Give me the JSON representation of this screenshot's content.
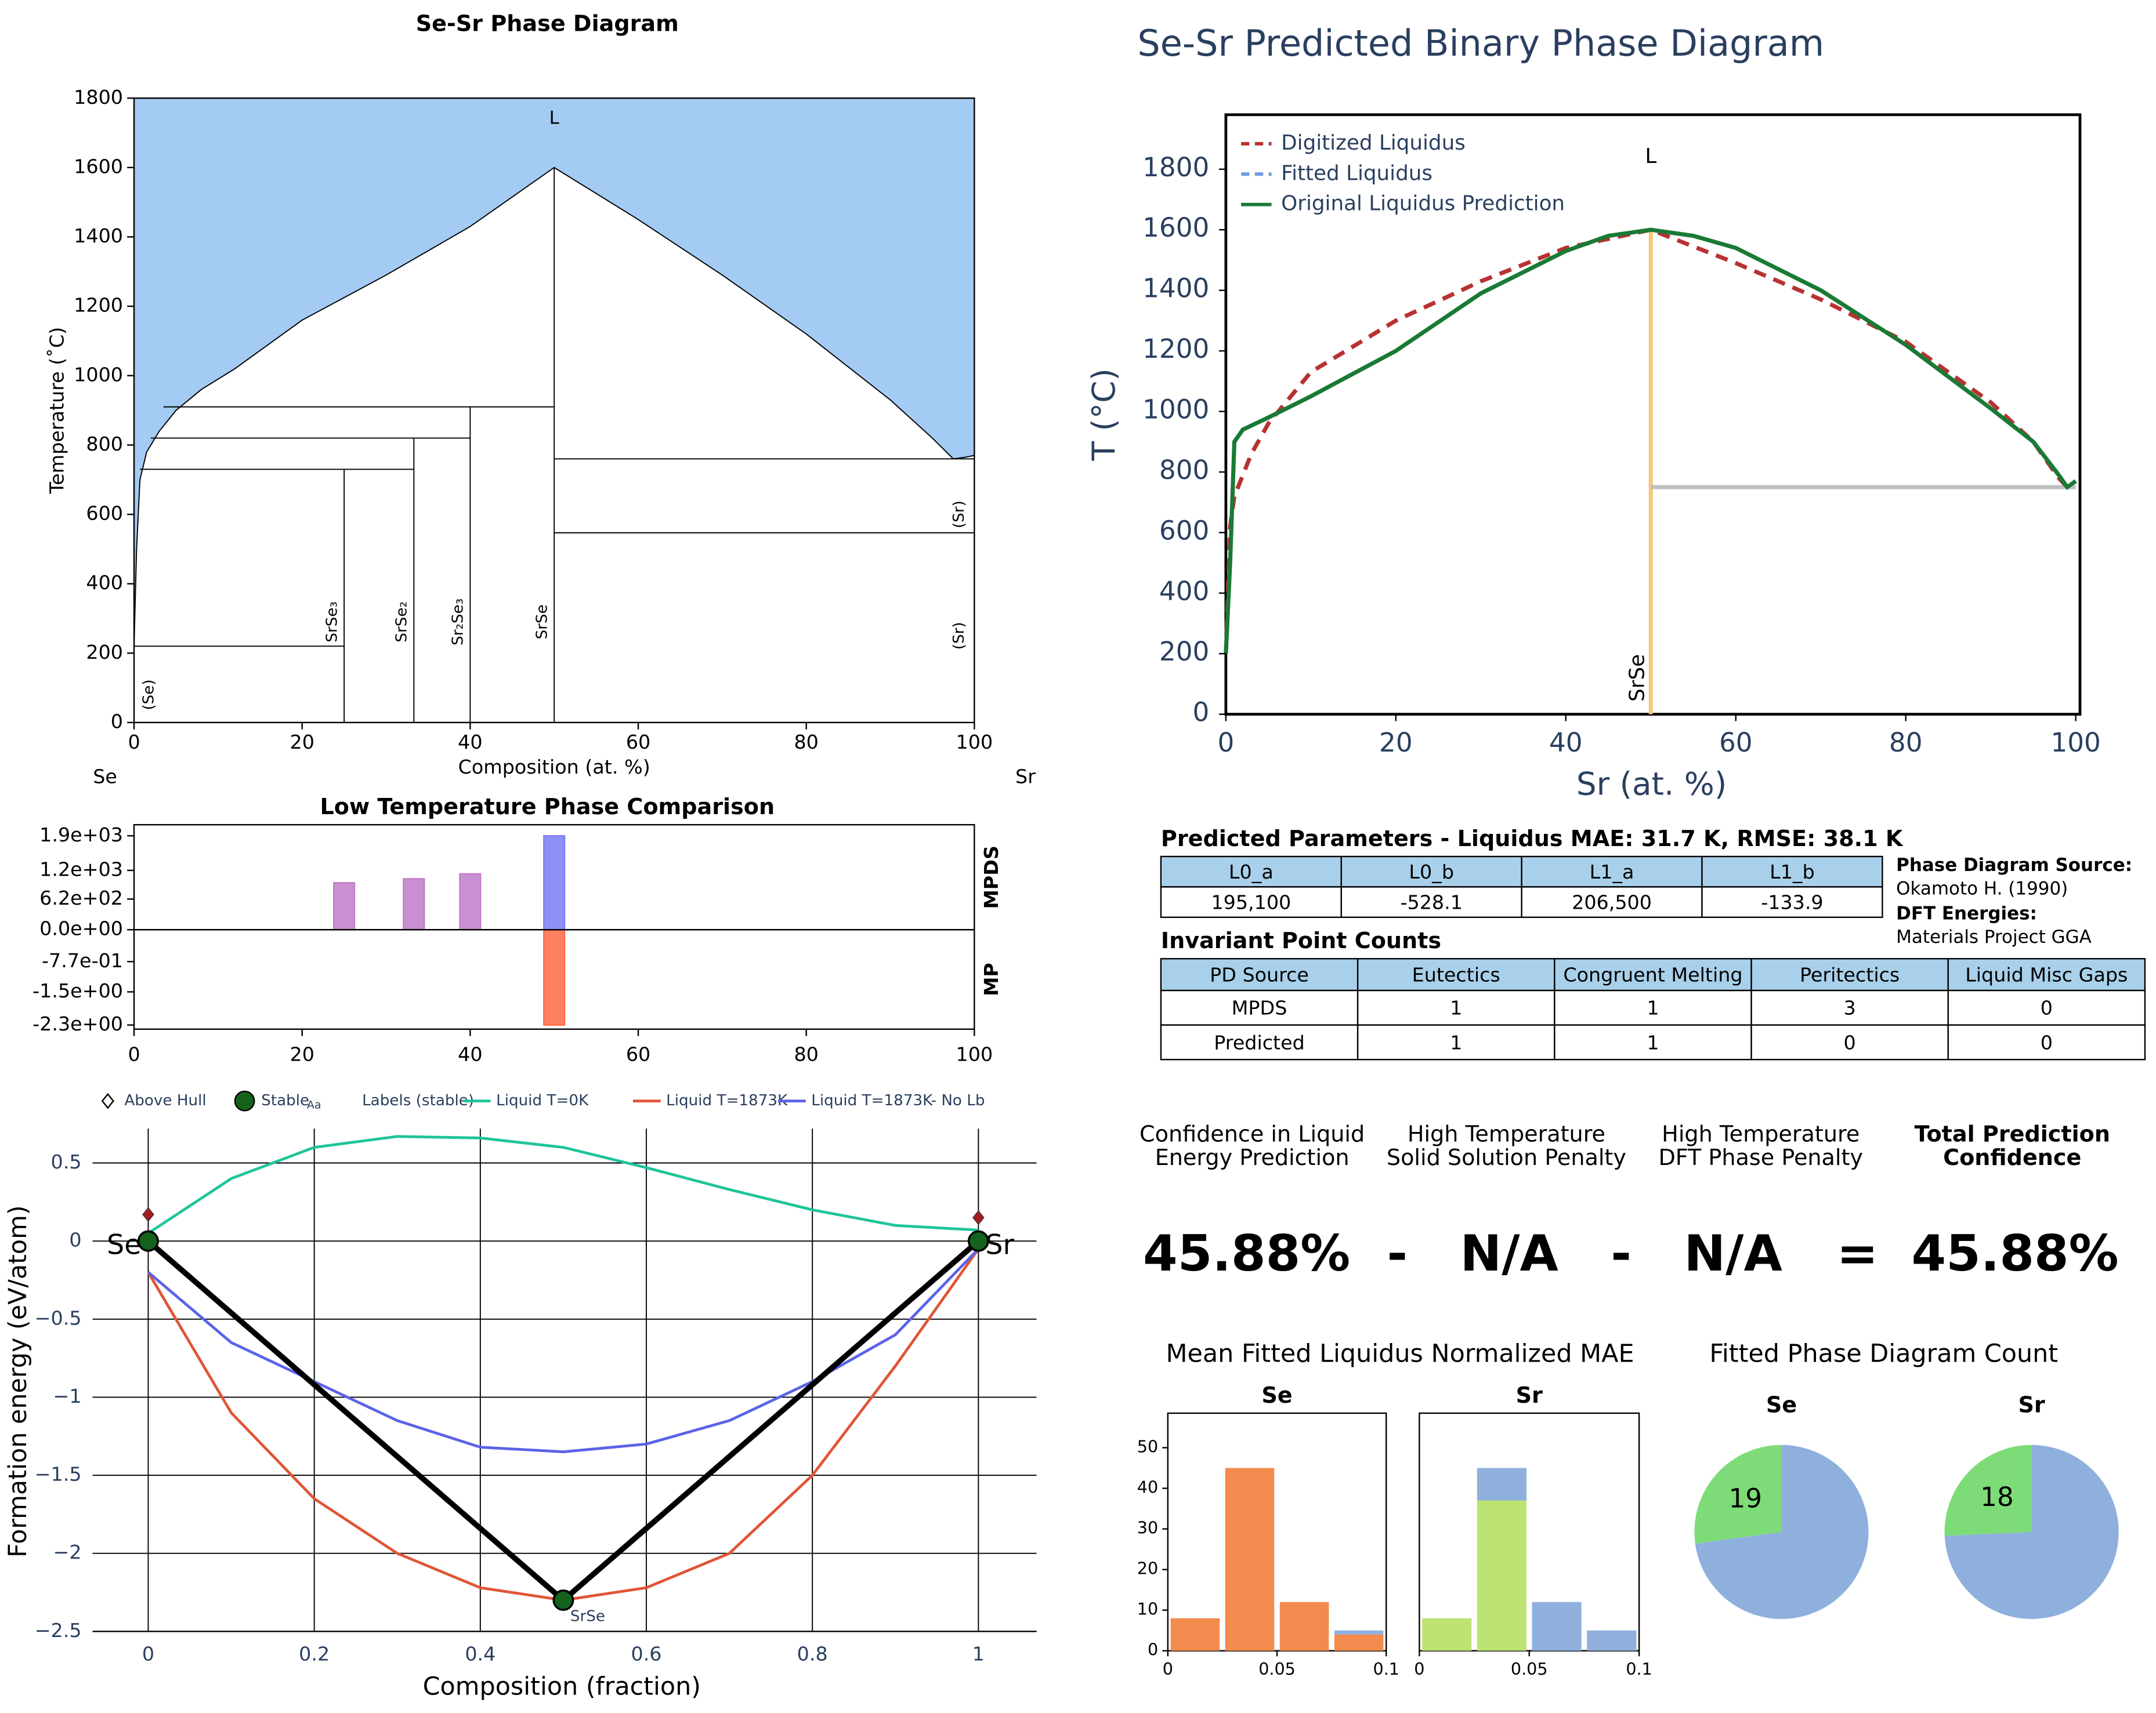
{
  "chart_data": [
    {
      "type": "phase",
      "title": "Se-Sr Phase Diagram",
      "x_label": "Composition (at. %)",
      "y_label": "Temperature (˚C)",
      "xlim": [
        0,
        100
      ],
      "ylim": [
        0,
        1800
      ],
      "xticks": [
        0,
        20,
        40,
        60,
        80,
        100
      ],
      "yticks": [
        0,
        200,
        400,
        600,
        800,
        1000,
        1200,
        1400,
        1600,
        1800
      ],
      "end_labels": [
        "Se",
        "Sr"
      ],
      "liquidus": {
        "color": "#a3cbf3",
        "x": [
          0,
          0.3,
          0.7,
          1.5,
          3,
          5,
          8,
          12,
          20,
          30,
          40,
          50,
          60,
          70,
          80,
          90,
          95,
          97.5,
          99,
          100
        ],
        "y": [
          220,
          500,
          700,
          780,
          840,
          900,
          960,
          1020,
          1160,
          1290,
          1430,
          1600,
          1450,
          1290,
          1120,
          930,
          820,
          760,
          765,
          770
        ]
      },
      "boundaries": [
        {
          "x": [
            25,
            25
          ],
          "y": [
            0,
            730
          ]
        },
        {
          "x": [
            33.3,
            33.3
          ],
          "y": [
            0,
            820
          ]
        },
        {
          "x": [
            40,
            40
          ],
          "y": [
            0,
            910
          ]
        },
        {
          "x": [
            50,
            50
          ],
          "y": [
            0,
            1600
          ]
        },
        {
          "x": [
            0,
            25
          ],
          "y": [
            220,
            220
          ]
        },
        {
          "x": [
            0.7,
            33.3
          ],
          "y": [
            730,
            730
          ]
        },
        {
          "x": [
            2,
            40
          ],
          "y": [
            820,
            820
          ]
        },
        {
          "x": [
            3.5,
            50
          ],
          "y": [
            910,
            910
          ]
        },
        {
          "x": [
            50,
            100
          ],
          "y": [
            760,
            760
          ]
        },
        {
          "x": [
            50,
            100
          ],
          "y": [
            547,
            547
          ]
        }
      ],
      "labels": [
        {
          "text": "L",
          "x": 50,
          "y": 1740
        },
        {
          "text": "(Se)",
          "x": 1.8,
          "y": 80
        },
        {
          "text": "SrSe₃",
          "x": 23.6,
          "y": 290
        },
        {
          "text": "SrSe₂",
          "x": 31.9,
          "y": 290
        },
        {
          "text": "Sr₂Se₃",
          "x": 38.6,
          "y": 290
        },
        {
          "text": "SrSe",
          "x": 48.6,
          "y": 290
        },
        {
          "text": "(Sr)",
          "x": 98.2,
          "y": 600
        },
        {
          "text": "(Sr)",
          "x": 98.2,
          "y": 250
        }
      ]
    },
    {
      "type": "line",
      "title": "Se-Sr Predicted Binary Phase Diagram",
      "x_label": "Sr (at. %)",
      "y_label": "T (°C)",
      "xlim": [
        0,
        100.5
      ],
      "ylim": [
        0,
        1980
      ],
      "xticks": [
        0,
        20,
        40,
        60,
        80,
        100
      ],
      "yticks": [
        0,
        200,
        400,
        600,
        800,
        1000,
        1200,
        1400,
        1600,
        1800
      ],
      "series": [
        {
          "name": "Digitized Liquidus",
          "color": "#b83232",
          "dash": true,
          "x": [
            0,
            0.5,
            1,
            2,
            3,
            5,
            10,
            20,
            30,
            40,
            50,
            60,
            70,
            80,
            90,
            95,
            98,
            99,
            100
          ],
          "values": [
            200,
            620,
            720,
            790,
            860,
            960,
            1130,
            1300,
            1430,
            1540,
            1600,
            1490,
            1370,
            1230,
            1030,
            900,
            780,
            750,
            770
          ]
        },
        {
          "name": "Fitted Liquidus",
          "color": "#6f9be0",
          "dash": true
        },
        {
          "name": "Original Liquidus Prediction",
          "color": "#1a7a35",
          "dash": false,
          "x": [
            0,
            0.5,
            1,
            2,
            5,
            10,
            20,
            30,
            40,
            45,
            50,
            55,
            60,
            70,
            80,
            90,
            95,
            98,
            99,
            100
          ],
          "values": [
            200,
            500,
            900,
            940,
            980,
            1050,
            1200,
            1390,
            1530,
            1580,
            1600,
            1580,
            1540,
            1400,
            1220,
            1010,
            900,
            790,
            750,
            770
          ]
        }
      ],
      "guides": [
        {
          "color": "#f5c97a",
          "x": [
            50,
            50
          ],
          "y": [
            0,
            1600
          ]
        },
        {
          "color": "#c0c0c0",
          "x": [
            50,
            100
          ],
          "y": [
            750,
            750
          ]
        }
      ],
      "labels": [
        {
          "text": "L",
          "x": 50,
          "y": 1840
        },
        {
          "text": "SrSe",
          "x": 48.5,
          "y": 120
        }
      ]
    },
    {
      "type": "bar_panels",
      "title": "Low Temperature Phase Comparison",
      "xlim": [
        0,
        100
      ],
      "xticks": [
        0,
        20,
        40,
        60,
        80,
        100
      ],
      "panels": [
        {
          "label": "MPDS",
          "ylim": [
            0,
            2124
          ],
          "yticks": [
            {
              "value": 0,
              "label": "0.0e+00"
            },
            {
              "value": 620,
              "label": "6.2e+02"
            },
            {
              "value": 1200,
              "label": "1.2e+03"
            },
            {
              "value": 1900,
              "label": "1.9e+03"
            }
          ],
          "x": [
            25,
            33.3,
            40,
            50
          ],
          "values": [
            950,
            1030,
            1130,
            1900
          ],
          "colors": [
            "#c07cc9",
            "#c07cc9",
            "#c07cc9",
            "#7b7cf5"
          ]
        },
        {
          "label": "MP",
          "ylim": [
            -2.4,
            0
          ],
          "yticks": [
            {
              "value": -0.77,
              "label": "-7.7e-01"
            },
            {
              "value": -1.5,
              "label": "-1.5e+00"
            },
            {
              "value": -2.3,
              "label": "-2.3e+00"
            }
          ],
          "x": [
            50
          ],
          "values": [
            -2.3
          ],
          "colors": [
            "#ff6a45"
          ]
        }
      ]
    },
    {
      "type": "hull",
      "x_label": "Composition (fraction)",
      "y_label": "Formation energy (eV/atom)",
      "xlim": [
        -0.067,
        1.07
      ],
      "ylim": [
        -2.5,
        0.72
      ],
      "xticks": [
        0,
        0.2,
        0.4,
        0.6,
        0.8,
        1
      ],
      "yticks": [
        {
          "value": -2.5,
          "label": "−2.5"
        },
        {
          "value": -2,
          "label": "−2"
        },
        {
          "value": -1.5,
          "label": "−1.5"
        },
        {
          "value": -1,
          "label": "−1"
        },
        {
          "value": -0.5,
          "label": "−0.5"
        },
        0,
        0.5
      ],
      "grid": true,
      "hull": {
        "color": "#000000",
        "x": [
          0,
          0.5,
          1
        ],
        "values": [
          0,
          -2.3,
          0
        ]
      },
      "series": [
        {
          "name": "Above Hull",
          "kind": "diamond",
          "color": "#a11f1f",
          "x": [
            0,
            1
          ],
          "values": [
            0.17,
            0.15
          ]
        },
        {
          "name": "Stable",
          "kind": "point",
          "color": "#14621c",
          "x": [
            0,
            0.5,
            1
          ],
          "values": [
            0,
            -2.3,
            0
          ]
        },
        {
          "name": "Labels (stable)",
          "kind": "label",
          "marker": "Aa",
          "labels": [
            "Se",
            "SrSe",
            "Sr"
          ],
          "x": [
            0,
            0.5,
            1
          ],
          "values": [
            0,
            -2.3,
            0
          ]
        },
        {
          "name": "Liquid T=0K",
          "kind": "line",
          "color": "#1fc49a",
          "x": [
            0,
            0.1,
            0.2,
            0.3,
            0.4,
            0.5,
            0.6,
            0.7,
            0.8,
            0.9,
            1
          ],
          "values": [
            0.05,
            0.4,
            0.6,
            0.67,
            0.66,
            0.6,
            0.47,
            0.33,
            0.2,
            0.1,
            0.07
          ]
        },
        {
          "name": "Liquid T=1873K",
          "kind": "line",
          "color": "#e05535",
          "x": [
            0,
            0.1,
            0.2,
            0.3,
            0.4,
            0.5,
            0.6,
            0.7,
            0.8,
            0.9,
            1
          ],
          "values": [
            -0.2,
            -1.1,
            -1.65,
            -2.0,
            -2.22,
            -2.3,
            -2.22,
            -2.0,
            -1.5,
            -0.8,
            -0.05
          ]
        },
        {
          "name": "Liquid T=1873K- No Lb",
          "kind": "line",
          "color": "#5b63e8",
          "x": [
            0,
            0.1,
            0.2,
            0.3,
            0.4,
            0.5,
            0.6,
            0.7,
            0.8,
            0.9,
            1
          ],
          "values": [
            -0.2,
            -0.65,
            -0.9,
            -1.15,
            -1.32,
            -1.35,
            -1.3,
            -1.15,
            -0.9,
            -0.6,
            -0.05
          ]
        }
      ]
    },
    {
      "type": "histogram",
      "title": "Mean Fitted Liquidus Normalized MAE",
      "panels": [
        {
          "title": "Se",
          "bins": [
            0,
            0.025,
            0.05,
            0.075,
            0.1
          ],
          "xlim": [
            0,
            0.1
          ],
          "xticks": [
            0,
            0.05,
            0.1
          ],
          "ylim": [
            0,
            58.5
          ],
          "yticks": [
            0,
            10,
            20,
            30,
            40,
            50
          ],
          "series": [
            {
              "color": "#f28b4d",
              "values": [
                8,
                45,
                12,
                4
              ]
            },
            {
              "color": "#8fb0dc",
              "values": [
                0,
                0,
                0,
                1
              ]
            }
          ]
        },
        {
          "title": "Sr",
          "bins": [
            0,
            0.025,
            0.05,
            0.075,
            0.1
          ],
          "xlim": [
            0,
            0.1
          ],
          "xticks": [
            0,
            0.05,
            0.1
          ],
          "ylim": [
            0,
            58.5
          ],
          "series": [
            {
              "color": "#bde372",
              "values": [
                8,
                37,
                0,
                0
              ]
            },
            {
              "color": "#8fb0dc",
              "values": [
                0,
                8,
                12,
                5
              ]
            }
          ]
        }
      ]
    },
    {
      "type": "pie",
      "title": "Fitted Phase Diagram Count",
      "panels": [
        {
          "title": "Se",
          "values": [
            19,
            51
          ],
          "colors": [
            "#7ddc78",
            "#8fb0dc"
          ],
          "show_value": [
            true,
            false
          ]
        },
        {
          "title": "Sr",
          "values": [
            18,
            52
          ],
          "colors": [
            "#7ddc78",
            "#8fb0dc"
          ],
          "show_value": [
            true,
            false
          ]
        }
      ]
    }
  ],
  "parameters_table": {
    "title": "Predicted Parameters - Liquidus MAE: 31.7 K, RMSE: 38.1 K",
    "header": [
      "L0_a",
      "L0_b",
      "L1_a",
      "L1_b"
    ],
    "rows": [
      [
        "195,100",
        "-528.1",
        "206,500",
        "-133.9"
      ]
    ]
  },
  "source_info": [
    {
      "label": "Phase Diagram Source:",
      "value": "Okamoto H. (1990)"
    },
    {
      "label": "DFT Energies:",
      "value": "Materials Project GGA"
    }
  ],
  "invariant_table": {
    "title": "Invariant Point Counts",
    "header": [
      "PD Source",
      "Eutectics",
      "Congruent Melting",
      "Peritectics",
      "Liquid Misc Gaps"
    ],
    "rows": [
      [
        "MPDS",
        1,
        1,
        3,
        0
      ],
      [
        "Predicted",
        1,
        1,
        0,
        0
      ]
    ]
  },
  "confidence": {
    "headers": [
      [
        "Confidence in Liquid",
        "Energy Prediction"
      ],
      [
        "High Temperature",
        "Solid Solution Penalty"
      ],
      [
        "High Temperature",
        "DFT Phase Penalty"
      ],
      [
        "Total Prediction",
        "Confidence"
      ]
    ],
    "values": [
      "45.88%",
      "N/A",
      "N/A",
      "45.88%"
    ],
    "operators": [
      "-",
      "-",
      "="
    ]
  }
}
